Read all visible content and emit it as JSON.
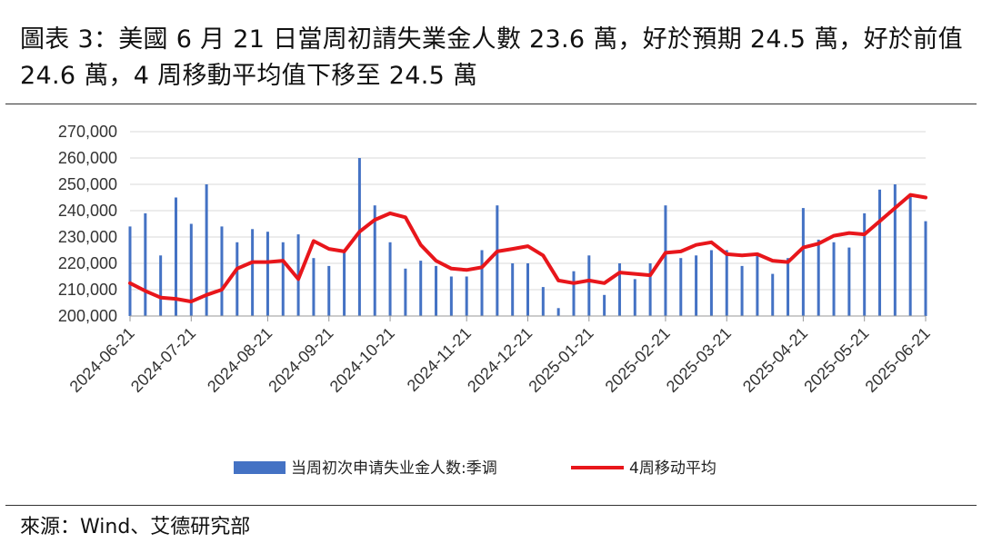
{
  "figure": {
    "title": "圖表 3：美國 6 月 21 日當周初請失業金人數 23.6 萬，好於預期 24.5 萬，好於前值 24.6 萬，4 周移動平均值下移至 24.5 萬",
    "source": "來源：Wind、艾德研究部"
  },
  "colors": {
    "bar": "#4472C4",
    "line": "#E8161B",
    "axis": "#999999"
  },
  "chart_data": {
    "type": "bar",
    "ylim": [
      200000,
      270000
    ],
    "y_ticks": [
      "200,000",
      "210,000",
      "220,000",
      "230,000",
      "240,000",
      "250,000",
      "260,000",
      "270,000"
    ],
    "x_ticks": [
      "2024-06-21",
      "2024-07-21",
      "2024-08-21",
      "2024-09-21",
      "2024-10-21",
      "2024-11-21",
      "2024-12-21",
      "2025-01-21",
      "2025-02-21",
      "2025-03-21",
      "2025-04-21",
      "2025-05-21",
      "2025-06-21"
    ],
    "legend_position": "bottom",
    "series": [
      {
        "name": "当周初次申请失业金人数:季调",
        "type": "bar",
        "values": [
          234000,
          239000,
          223000,
          245000,
          235000,
          250000,
          234000,
          228000,
          233000,
          232000,
          228000,
          231000,
          222000,
          219000,
          225000,
          260000,
          242000,
          228000,
          218000,
          221000,
          219000,
          215000,
          215000,
          225000,
          242000,
          220000,
          220000,
          211000,
          203000,
          217000,
          223000,
          208000,
          220000,
          214000,
          220000,
          242000,
          222000,
          223000,
          225000,
          225000,
          219000,
          223000,
          216000,
          222000,
          241000,
          229000,
          228000,
          226000,
          239000,
          248000,
          250000,
          246000,
          236000
        ]
      },
      {
        "name": "4周移动平均",
        "type": "line",
        "values": [
          212500,
          209500,
          207000,
          206500,
          205500,
          208000,
          210000,
          218000,
          220500,
          220500,
          221000,
          214000,
          228500,
          225500,
          224500,
          232000,
          236500,
          239000,
          237500,
          227000,
          221000,
          218000,
          217500,
          218500,
          224500,
          225500,
          226500,
          223000,
          213500,
          212500,
          213500,
          212500,
          216500,
          216000,
          215500,
          224000,
          224500,
          227000,
          228000,
          223500,
          223000,
          223500,
          221000,
          220500,
          226000,
          227500,
          230500,
          231500,
          231000,
          236000,
          241000,
          246000,
          245000
        ]
      }
    ]
  }
}
